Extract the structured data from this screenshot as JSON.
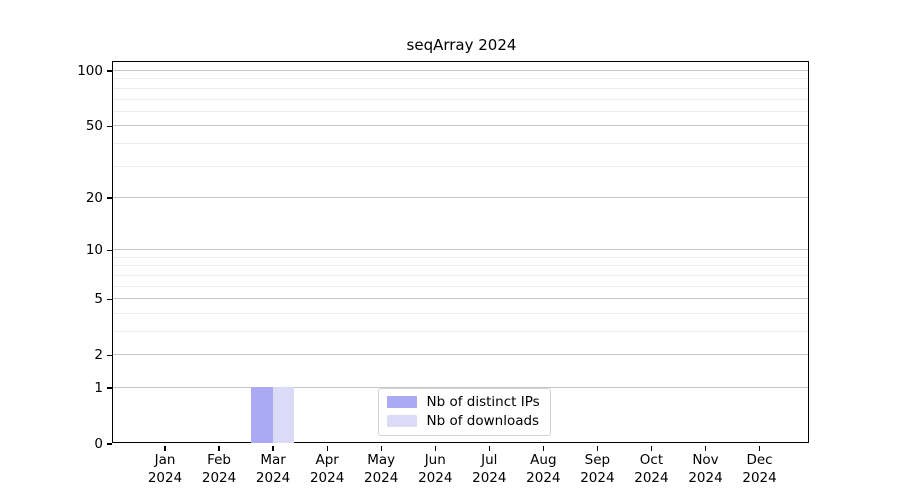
{
  "page": {
    "background": "#ffffff"
  },
  "chart_data": {
    "type": "bar",
    "title": "seqArray 2024",
    "categories": [
      "Jan\n2024",
      "Feb\n2024",
      "Mar\n2024",
      "Apr\n2024",
      "May\n2024",
      "Jun\n2024",
      "Jul\n2024",
      "Aug\n2024",
      "Sep\n2024",
      "Oct\n2024",
      "Nov\n2024",
      "Dec\n2024"
    ],
    "series": [
      {
        "name": "Nb of distinct IPs",
        "color": "#a9a9f4",
        "values": [
          0,
          0,
          1,
          0,
          0,
          0,
          0,
          0,
          0,
          0,
          0,
          0
        ]
      },
      {
        "name": "Nb of downloads",
        "color": "#dbdbf8",
        "values": [
          0,
          0,
          1,
          0,
          0,
          0,
          0,
          0,
          0,
          0,
          0,
          0
        ]
      }
    ],
    "xlabel": "",
    "ylabel": "",
    "yscale": "log1p",
    "ylim": [
      0,
      112
    ],
    "y_major_ticks": [
      0,
      1,
      2,
      5,
      10,
      20,
      50,
      100
    ],
    "y_minor_gridlines": [
      3,
      4,
      6,
      7,
      8,
      9,
      30,
      40,
      60,
      70,
      80,
      90
    ],
    "grid": true,
    "legend_position": "inside-bottom-center",
    "colors": {
      "major_grid": "#c6c6c6",
      "minor_grid": "#ececec",
      "axis": "#000000",
      "background": "#ffffff"
    }
  }
}
